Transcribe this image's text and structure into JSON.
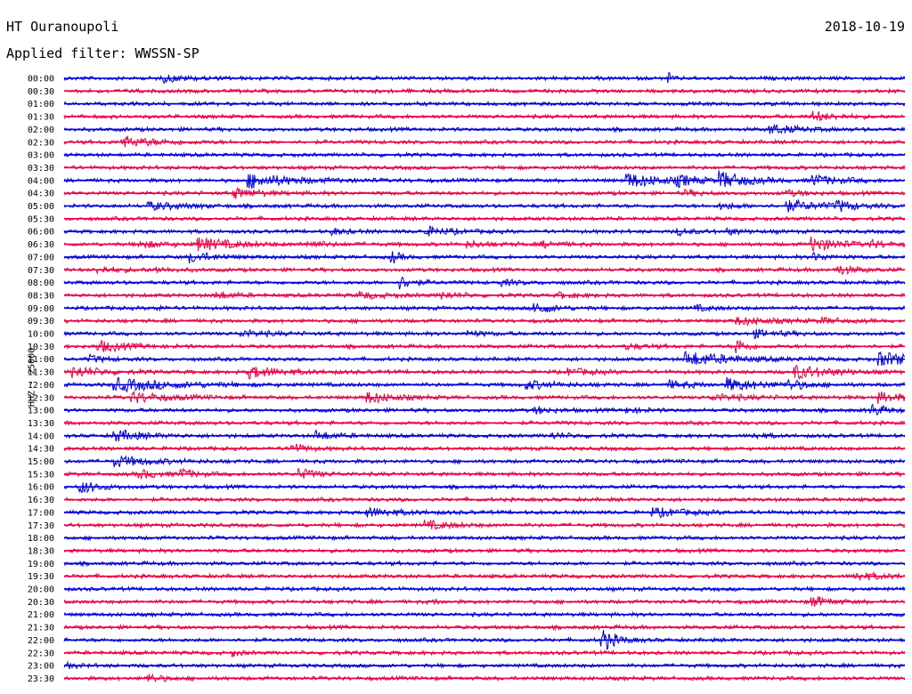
{
  "header": {
    "station": "HT Ouranoupoli",
    "date": "2018-10-19",
    "filter_prefix": "Applied filter: ",
    "filter_value": "WWSSN-SP"
  },
  "chart_data": {
    "type": "helicorder",
    "ylabel": "HHZ - 25000",
    "colors": [
      "#0000dd",
      "#ee0044"
    ],
    "rows": [
      {
        "label": "00:00",
        "events": [
          {
            "t": 0.12,
            "a": 0.6,
            "d": 0.03
          },
          {
            "t": 0.72,
            "a": 0.9,
            "d": 0.003
          }
        ]
      },
      {
        "label": "00:30",
        "events": []
      },
      {
        "label": "01:00",
        "events": []
      },
      {
        "label": "01:30",
        "events": [
          {
            "t": 0.89,
            "a": 0.9,
            "d": 0.025
          }
        ]
      },
      {
        "label": "02:00",
        "events": [
          {
            "t": 0.84,
            "a": 0.9,
            "d": 0.03
          }
        ]
      },
      {
        "label": "02:30",
        "events": [
          {
            "t": 0.07,
            "a": 1.0,
            "d": 0.04
          }
        ]
      },
      {
        "label": "03:00",
        "events": []
      },
      {
        "label": "03:30",
        "events": []
      },
      {
        "label": "04:00",
        "events": [
          {
            "t": 0.22,
            "a": 1.4,
            "d": 0.05
          },
          {
            "t": 0.67,
            "a": 1.4,
            "d": 0.04
          },
          {
            "t": 0.73,
            "a": 0.9,
            "d": 0.02
          },
          {
            "t": 0.78,
            "a": 1.6,
            "d": 0.03
          },
          {
            "t": 0.89,
            "a": 1.0,
            "d": 0.03
          }
        ]
      },
      {
        "label": "04:30",
        "events": [
          {
            "t": 0.2,
            "a": 1.0,
            "d": 0.03
          },
          {
            "t": 0.74,
            "a": 0.5,
            "d": 0.02
          },
          {
            "t": 0.86,
            "a": 0.5,
            "d": 0.02
          }
        ]
      },
      {
        "label": "05:00",
        "events": [
          {
            "t": 0.1,
            "a": 0.7,
            "d": 0.04
          },
          {
            "t": 0.78,
            "a": 0.6,
            "d": 0.02
          },
          {
            "t": 0.86,
            "a": 1.0,
            "d": 0.04
          },
          {
            "t": 0.92,
            "a": 0.9,
            "d": 0.02
          }
        ]
      },
      {
        "label": "05:30",
        "events": []
      },
      {
        "label": "06:00",
        "events": [
          {
            "t": 0.32,
            "a": 0.5,
            "d": 0.02
          },
          {
            "t": 0.43,
            "a": 0.8,
            "d": 0.03
          },
          {
            "t": 0.73,
            "a": 0.6,
            "d": 0.02
          },
          {
            "t": 0.79,
            "a": 0.5,
            "d": 0.02
          }
        ]
      },
      {
        "label": "06:30",
        "events": [
          {
            "t": 0.09,
            "a": 0.6,
            "d": 0.03
          },
          {
            "t": 0.16,
            "a": 1.2,
            "d": 0.04
          },
          {
            "t": 0.29,
            "a": 0.6,
            "d": 0.02
          },
          {
            "t": 0.48,
            "a": 0.5,
            "d": 0.03
          },
          {
            "t": 0.57,
            "a": 0.5,
            "d": 0.02
          },
          {
            "t": 0.89,
            "a": 1.3,
            "d": 0.03
          },
          {
            "t": 0.96,
            "a": 0.5,
            "d": 0.02
          }
        ]
      },
      {
        "label": "07:00",
        "events": [
          {
            "t": 0.15,
            "a": 0.9,
            "d": 0.03
          },
          {
            "t": 0.39,
            "a": 1.1,
            "d": 0.01
          },
          {
            "t": 0.89,
            "a": 0.7,
            "d": 0.02
          }
        ]
      },
      {
        "label": "07:30",
        "events": [
          {
            "t": 0.04,
            "a": 0.5,
            "d": 0.03
          },
          {
            "t": 0.11,
            "a": 0.4,
            "d": 0.02
          },
          {
            "t": 0.92,
            "a": 0.9,
            "d": 0.02
          }
        ]
      },
      {
        "label": "08:00",
        "events": [
          {
            "t": 0.4,
            "a": 1.2,
            "d": 0.015
          },
          {
            "t": 0.52,
            "a": 0.5,
            "d": 0.02
          }
        ]
      },
      {
        "label": "08:30",
        "events": [
          {
            "t": 0.18,
            "a": 0.8,
            "d": 0.02
          },
          {
            "t": 0.35,
            "a": 0.6,
            "d": 0.03
          },
          {
            "t": 0.45,
            "a": 0.6,
            "d": 0.02
          },
          {
            "t": 0.59,
            "a": 0.5,
            "d": 0.02
          }
        ]
      },
      {
        "label": "09:00",
        "events": [
          {
            "t": 0.11,
            "a": 0.7,
            "d": 0.005
          },
          {
            "t": 0.56,
            "a": 1.2,
            "d": 0.02
          },
          {
            "t": 0.75,
            "a": 0.5,
            "d": 0.02
          }
        ]
      },
      {
        "label": "09:30",
        "events": [
          {
            "t": 0.8,
            "a": 0.7,
            "d": 0.04
          },
          {
            "t": 0.9,
            "a": 0.5,
            "d": 0.02
          }
        ]
      },
      {
        "label": "10:00",
        "events": [
          {
            "t": 0.21,
            "a": 0.6,
            "d": 0.03
          },
          {
            "t": 0.48,
            "a": 0.5,
            "d": 0.02
          },
          {
            "t": 0.82,
            "a": 0.7,
            "d": 0.03
          }
        ]
      },
      {
        "label": "10:30",
        "events": [
          {
            "t": 0.04,
            "a": 1.1,
            "d": 0.03
          },
          {
            "t": 0.67,
            "a": 0.5,
            "d": 0.02
          },
          {
            "t": 0.8,
            "a": 1.7,
            "d": 0.01
          }
        ]
      },
      {
        "label": "11:00",
        "events": [
          {
            "t": 0.03,
            "a": 0.6,
            "d": 0.02
          },
          {
            "t": 0.74,
            "a": 1.4,
            "d": 0.05
          },
          {
            "t": 0.97,
            "a": 1.3,
            "d": 0.05
          }
        ]
      },
      {
        "label": "11:30",
        "events": [
          {
            "t": 0.01,
            "a": 1.1,
            "d": 0.03
          },
          {
            "t": 0.22,
            "a": 1.1,
            "d": 0.04
          },
          {
            "t": 0.6,
            "a": 0.6,
            "d": 0.03
          },
          {
            "t": 0.87,
            "a": 1.3,
            "d": 0.04
          }
        ]
      },
      {
        "label": "12:00",
        "events": [
          {
            "t": 0.06,
            "a": 1.2,
            "d": 0.07
          },
          {
            "t": 0.55,
            "a": 0.8,
            "d": 0.03
          },
          {
            "t": 0.72,
            "a": 0.7,
            "d": 0.03
          },
          {
            "t": 0.79,
            "a": 1.1,
            "d": 0.04
          },
          {
            "t": 0.86,
            "a": 0.9,
            "d": 0.02
          }
        ]
      },
      {
        "label": "12:30",
        "events": [
          {
            "t": 0.08,
            "a": 1.0,
            "d": 0.04
          },
          {
            "t": 0.36,
            "a": 1.1,
            "d": 0.03
          },
          {
            "t": 0.77,
            "a": 0.6,
            "d": 0.04
          },
          {
            "t": 0.97,
            "a": 0.9,
            "d": 0.03
          }
        ]
      },
      {
        "label": "13:00",
        "events": [
          {
            "t": 0.56,
            "a": 0.6,
            "d": 0.02
          },
          {
            "t": 0.67,
            "a": 0.5,
            "d": 0.02
          },
          {
            "t": 0.96,
            "a": 1.2,
            "d": 0.015
          }
        ]
      },
      {
        "label": "13:30",
        "events": []
      },
      {
        "label": "14:00",
        "events": [
          {
            "t": 0.06,
            "a": 1.1,
            "d": 0.03
          },
          {
            "t": 0.3,
            "a": 0.9,
            "d": 0.02
          },
          {
            "t": 0.58,
            "a": 0.5,
            "d": 0.02
          },
          {
            "t": 0.82,
            "a": 0.4,
            "d": 0.02
          }
        ]
      },
      {
        "label": "14:30",
        "events": [
          {
            "t": 0.27,
            "a": 1.1,
            "d": 0.015
          }
        ]
      },
      {
        "label": "15:00",
        "events": [
          {
            "t": 0.06,
            "a": 1.0,
            "d": 0.04
          }
        ]
      },
      {
        "label": "15:30",
        "events": [
          {
            "t": 0.09,
            "a": 0.9,
            "d": 0.02
          },
          {
            "t": 0.14,
            "a": 0.9,
            "d": 0.015
          },
          {
            "t": 0.28,
            "a": 1.0,
            "d": 0.02
          }
        ]
      },
      {
        "label": "16:00",
        "events": [
          {
            "t": 0.02,
            "a": 1.2,
            "d": 0.02
          }
        ]
      },
      {
        "label": "16:30",
        "events": []
      },
      {
        "label": "17:00",
        "events": [
          {
            "t": 0.36,
            "a": 0.8,
            "d": 0.04
          },
          {
            "t": 0.7,
            "a": 0.8,
            "d": 0.04
          }
        ]
      },
      {
        "label": "17:30",
        "events": [
          {
            "t": 0.43,
            "a": 0.8,
            "d": 0.03
          }
        ]
      },
      {
        "label": "18:00",
        "events": []
      },
      {
        "label": "18:30",
        "events": []
      },
      {
        "label": "19:00",
        "events": []
      },
      {
        "label": "19:30",
        "events": [
          {
            "t": 0.94,
            "a": 0.7,
            "d": 0.04
          }
        ]
      },
      {
        "label": "20:00",
        "events": []
      },
      {
        "label": "20:30",
        "events": [
          {
            "t": 0.44,
            "a": 0.3,
            "d": 0.01
          },
          {
            "t": 0.89,
            "a": 1.0,
            "d": 0.02
          }
        ]
      },
      {
        "label": "21:00",
        "events": []
      },
      {
        "label": "21:30",
        "events": []
      },
      {
        "label": "22:00",
        "events": [
          {
            "t": 0.64,
            "a": 2.3,
            "d": 0.015
          }
        ]
      },
      {
        "label": "22:30",
        "events": [
          {
            "t": 0.2,
            "a": 0.6,
            "d": 0.01
          }
        ]
      },
      {
        "label": "23:00",
        "events": [
          {
            "t": 0.005,
            "a": 0.5,
            "d": 0.01
          }
        ]
      },
      {
        "label": "23:30",
        "events": [
          {
            "t": 0.1,
            "a": 0.9,
            "d": 0.015
          }
        ]
      }
    ]
  }
}
